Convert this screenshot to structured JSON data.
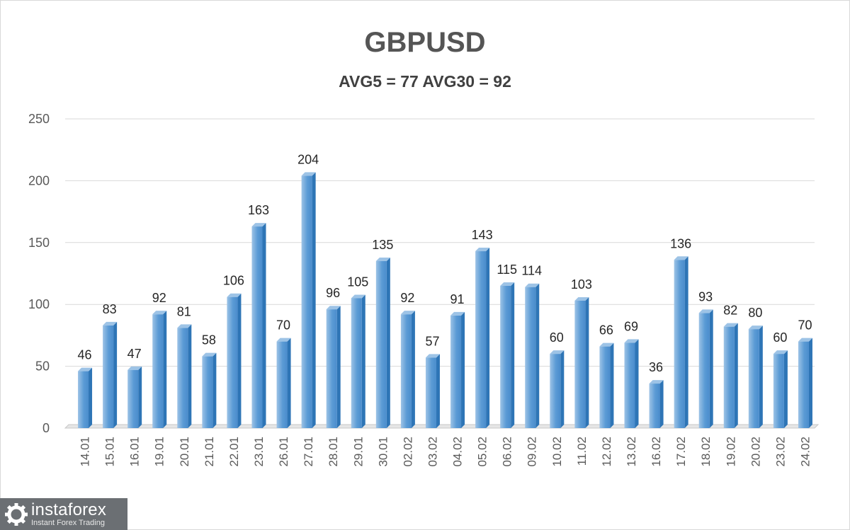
{
  "chart_data": {
    "type": "bar",
    "title": "GBPUSD",
    "subtitle": "AVG5 = 77 AVG30 = 92",
    "categories": [
      "14.01",
      "15.01",
      "16.01",
      "19.01",
      "20.01",
      "21.01",
      "22.01",
      "23.01",
      "26.01",
      "27.01",
      "28.01",
      "29.01",
      "30.01",
      "02.02",
      "03.02",
      "04.02",
      "05.02",
      "06.02",
      "09.02",
      "10.02",
      "11.02",
      "12.02",
      "13.02",
      "16.02",
      "17.02",
      "18.02",
      "19.02",
      "20.02",
      "23.02",
      "24.02"
    ],
    "values": [
      46,
      83,
      47,
      92,
      81,
      58,
      106,
      163,
      70,
      204,
      96,
      105,
      135,
      92,
      57,
      91,
      143,
      115,
      114,
      60,
      103,
      66,
      69,
      36,
      136,
      93,
      82,
      80,
      60,
      70
    ],
    "ylim": [
      0,
      250
    ],
    "yticks": [
      0,
      50,
      100,
      150,
      200,
      250
    ],
    "grid": true,
    "legend": "none",
    "xlabel": "",
    "ylabel": "",
    "colors": {
      "bar_light": "#9dc3e6",
      "bar_mid": "#5b9bd5",
      "bar_dark": "#2e75b6",
      "grid": "#d9d9d9"
    }
  },
  "watermark": {
    "brand": "instaforex",
    "tagline": "Instant Forex Trading",
    "logo_icon": "gear-icon"
  }
}
